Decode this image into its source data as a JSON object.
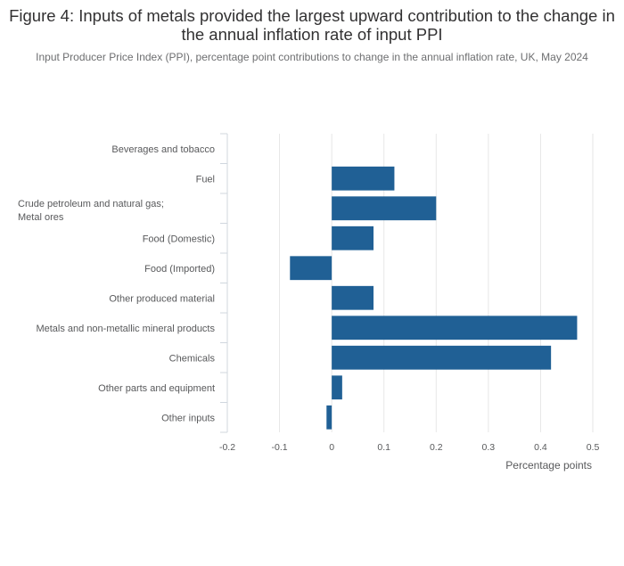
{
  "title": "Figure 4: Inputs of metals provided the largest upward contribution to the change in the annual inflation rate of input PPI",
  "subtitle": "Input Producer Price Index (PPI), percentage point contributions to change in the annual inflation rate, UK, May 2024",
  "chart_data": {
    "type": "bar",
    "orientation": "horizontal",
    "categories": [
      "Beverages and tobacco",
      "Fuel",
      "Crude petroleum and natural gas; Metal ores",
      "Food (Domestic)",
      "Food (Imported)",
      "Other produced material",
      "Metals and non-metallic mineral products",
      "Chemicals",
      "Other parts and equipment",
      "Other inputs"
    ],
    "values": [
      0.0,
      0.12,
      0.2,
      0.08,
      -0.08,
      0.08,
      0.47,
      0.42,
      0.02,
      -0.01
    ],
    "xlabel": "Percentage points",
    "ylabel": "",
    "xlim": [
      -0.2,
      0.5
    ],
    "xticks": [
      -0.2,
      -0.1,
      0,
      0.1,
      0.2,
      0.3,
      0.4,
      0.5
    ],
    "xtick_labels": [
      "-0.2",
      "-0.1",
      "0",
      "0.1",
      "0.2",
      "0.3",
      "0.4",
      "0.5"
    ],
    "bar_color": "#206095",
    "grid": true
  }
}
